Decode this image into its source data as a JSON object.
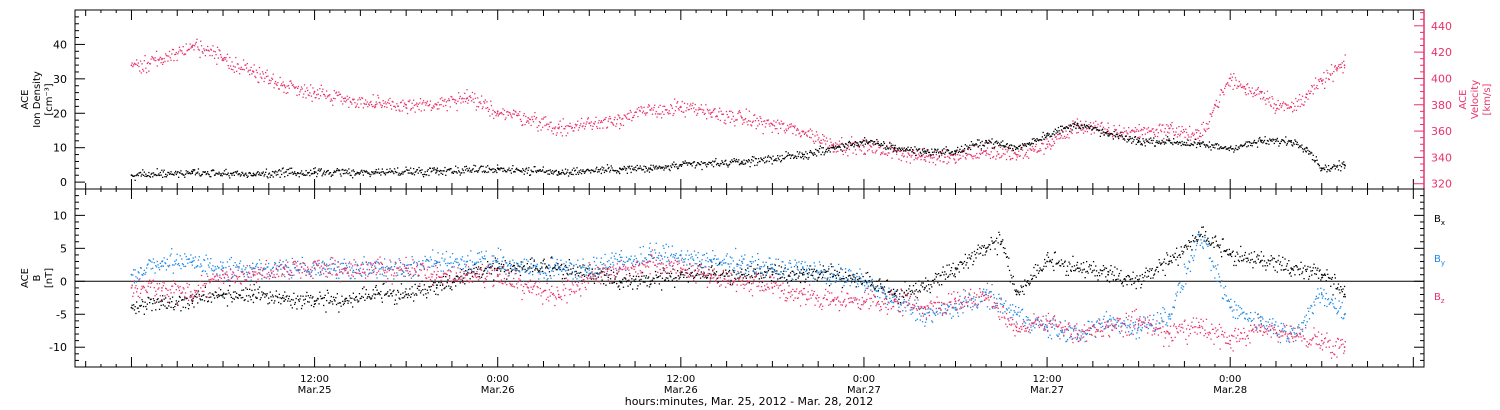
{
  "chart_data": [
    {
      "type": "scatter",
      "panel": "top",
      "ylabel_lines": [
        "ACE",
        "Ion Density",
        "[cm⁻³]"
      ],
      "ylim": [
        -2,
        50
      ],
      "yticks": [
        0,
        10,
        20,
        30,
        40
      ],
      "y2label_lines": [
        "ACE",
        "Velocity",
        "[km/s]"
      ],
      "y2lim": [
        316,
        452
      ],
      "y2ticks": [
        320,
        340,
        360,
        380,
        400,
        420,
        440
      ],
      "grid": false,
      "series": [
        {
          "axis": "left",
          "color": "#000000",
          "x_hours": [
            0,
            4,
            8,
            12,
            16,
            20,
            24,
            28,
            32,
            34,
            36,
            40,
            44,
            46,
            48,
            50,
            52,
            54,
            56,
            58,
            60,
            62,
            64,
            66,
            68,
            70,
            72,
            74,
            76,
            77,
            78,
            79.5
          ],
          "values": [
            2,
            3,
            2.5,
            3,
            3,
            3.5,
            4,
            3,
            4,
            4,
            5,
            6,
            8,
            10,
            12,
            10,
            9,
            9,
            12,
            10,
            14,
            17,
            14,
            12,
            12,
            11,
            10,
            12,
            12,
            10,
            4,
            5
          ]
        },
        {
          "axis": "right",
          "color": "#e8336a",
          "x_hours": [
            0,
            2,
            4,
            6,
            8,
            10,
            12,
            14,
            16,
            18,
            20,
            22,
            24,
            26,
            28,
            30,
            32,
            34,
            36,
            38,
            40,
            42,
            44,
            46,
            48,
            50,
            52,
            54,
            56,
            58,
            60,
            62,
            64,
            66,
            68,
            70,
            71,
            72,
            73,
            74,
            75,
            76,
            77,
            78,
            79,
            79.5
          ],
          "values": [
            410,
            415,
            425,
            415,
            405,
            395,
            390,
            385,
            380,
            380,
            380,
            385,
            375,
            370,
            362,
            366,
            370,
            376,
            378,
            374,
            370,
            365,
            360,
            350,
            348,
            345,
            340,
            342,
            345,
            342,
            350,
            365,
            360,
            360,
            362,
            356,
            380,
            400,
            392,
            390,
            380,
            378,
            388,
            398,
            408,
            410
          ]
        }
      ]
    },
    {
      "type": "scatter",
      "panel": "bottom",
      "ylabel_lines": [
        "ACE",
        "B",
        "[nT]"
      ],
      "ylim": [
        -13,
        14
      ],
      "yticks": [
        -10,
        -5,
        0,
        5,
        10
      ],
      "zero_line": true,
      "grid": false,
      "xlabel": "hours:minutes, Mar. 25, 2012 - Mar. 28, 2012",
      "xlim_hours": [
        -3.7,
        84.7
      ],
      "x_ticks": [
        {
          "hour": 12,
          "time": "12:00",
          "date": "Mar.25"
        },
        {
          "hour": 24,
          "time": "0:00",
          "date": "Mar.26"
        },
        {
          "hour": 36,
          "time": "12:00",
          "date": "Mar.26"
        },
        {
          "hour": 48,
          "time": "0:00",
          "date": "Mar.27"
        },
        {
          "hour": 60,
          "time": "12:00",
          "date": "Mar.27"
        },
        {
          "hour": 72,
          "time": "0:00",
          "date": "Mar.28"
        }
      ],
      "x_minor_step_hours": 1,
      "series": [
        {
          "name": "B",
          "sub": "x",
          "color": "#000000",
          "x_hours": [
            0,
            2,
            4,
            6,
            8,
            10,
            12,
            14,
            16,
            18,
            20,
            22,
            24,
            26,
            28,
            30,
            32,
            34,
            36,
            38,
            40,
            42,
            44,
            46,
            48,
            50,
            52,
            54,
            56,
            57,
            58,
            60,
            62,
            64,
            66,
            68,
            70,
            72,
            74,
            76,
            78,
            79.5
          ],
          "values": [
            -4,
            -3,
            -3,
            -2,
            -2,
            -3,
            -3,
            -3,
            -2,
            -2,
            -1,
            1,
            2,
            2,
            2,
            1,
            0,
            0,
            1,
            1,
            1,
            1,
            1,
            1,
            0,
            -2,
            -1,
            2,
            5,
            6,
            -2,
            3,
            2,
            1,
            0,
            3,
            7,
            4,
            3,
            2,
            1,
            -2
          ]
        },
        {
          "name": "B",
          "sub": "y",
          "color": "#1e88e5",
          "x_hours": [
            0,
            2,
            4,
            6,
            8,
            10,
            12,
            14,
            16,
            18,
            20,
            22,
            24,
            26,
            28,
            30,
            32,
            34,
            36,
            38,
            40,
            42,
            44,
            46,
            48,
            50,
            52,
            54,
            56,
            58,
            60,
            62,
            64,
            66,
            68,
            70,
            72,
            74,
            76,
            78,
            79.5
          ],
          "values": [
            1,
            3,
            3,
            2,
            2,
            2,
            2,
            2,
            2,
            2,
            3,
            3,
            3,
            2,
            2,
            2,
            3,
            4,
            4,
            3,
            3,
            2,
            2,
            1,
            0,
            -3,
            -5,
            -4,
            -2,
            -5,
            -7,
            -8,
            -6,
            -7,
            -5,
            7,
            -4,
            -6,
            -8,
            -2,
            -5
          ]
        },
        {
          "name": "B",
          "sub": "z",
          "color": "#e8336a",
          "x_hours": [
            0,
            2,
            4,
            6,
            8,
            10,
            12,
            14,
            16,
            18,
            20,
            22,
            24,
            26,
            28,
            30,
            32,
            34,
            36,
            38,
            40,
            42,
            44,
            46,
            48,
            50,
            52,
            54,
            56,
            58,
            60,
            62,
            64,
            66,
            68,
            70,
            72,
            74,
            76,
            78,
            79.5
          ],
          "values": [
            -1,
            -1,
            -2,
            1,
            1,
            2,
            2,
            2,
            2,
            2,
            1,
            1,
            1,
            -1,
            -2,
            1,
            2,
            3,
            2,
            1,
            0,
            -1,
            -2,
            -3,
            -3,
            -3,
            -4,
            -3,
            -2,
            -7,
            -6,
            -8,
            -7,
            -6,
            -8,
            -7,
            -9,
            -7,
            -8,
            -9,
            -10
          ]
        }
      ]
    }
  ]
}
